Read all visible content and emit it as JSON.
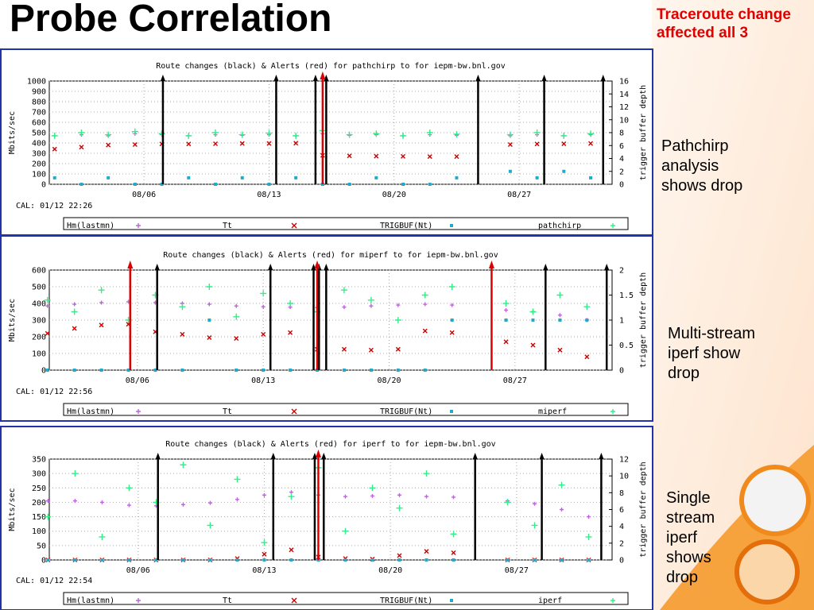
{
  "title": "Probe Correlation",
  "note": "Traceroute change affected all 3",
  "chart_data": [
    {
      "type": "scatter",
      "title": "Route changes (black) & Alerts (red) for pathchirp to  for iepm-bw.bnl.gov",
      "y_label": "Mbits/sec",
      "y2_label": "trigger buffer depth",
      "caption": "CAL: 01/12 22:26",
      "side_text": "Pathchirp analysis shows drop",
      "x": [
        1,
        2.5,
        4,
        5.5,
        7,
        8.5,
        10,
        11.5,
        13,
        14.5,
        16,
        17.5,
        19,
        20.5,
        22,
        23.5,
        25,
        26.5,
        28,
        29.5,
        31
      ],
      "xlim": [
        0.7,
        32.2
      ],
      "xticks": [
        {
          "value": 6,
          "label": "08/06"
        },
        {
          "value": 13,
          "label": "08/13"
        },
        {
          "value": 20,
          "label": "08/20"
        },
        {
          "value": 27,
          "label": "08/27"
        }
      ],
      "ylim": [
        0,
        1000
      ],
      "yticks": [
        0,
        100,
        200,
        300,
        400,
        500,
        600,
        700,
        800,
        900,
        1000
      ],
      "y2lim": [
        0,
        16
      ],
      "y2ticks": [
        0,
        2,
        4,
        6,
        8,
        10,
        12,
        14,
        16
      ],
      "grid": true,
      "route_changes": [
        7.06,
        13.4,
        15.6,
        16.2,
        24.7,
        28.4,
        31.7
      ],
      "alerts": [
        16.0
      ],
      "series": [
        {
          "name": "Hm(lastmn)",
          "color": "#bb66dd",
          "values": [
            470,
            480,
            470,
            490,
            480,
            470,
            480,
            475,
            480,
            470,
            490,
            475,
            480,
            470,
            480,
            475,
            null,
            470,
            480,
            470,
            480
          ]
        },
        {
          "name": "Tt",
          "color": "#cc0000",
          "values": [
            340,
            360,
            380,
            385,
            390,
            390,
            392,
            395,
            395,
            398,
            280,
            275,
            272,
            270,
            268,
            268,
            null,
            385,
            390,
            392,
            395
          ]
        },
        {
          "name": "TRIGBUF(Nt)",
          "color": "#22aacc",
          "axis": "y2",
          "values": [
            1,
            0,
            1,
            0,
            0,
            1,
            0,
            1,
            0,
            1,
            0,
            0,
            1,
            0,
            0,
            1,
            null,
            2,
            1,
            2,
            1
          ]
        },
        {
          "name": "pathchirp",
          "color": "#33ee88",
          "values": [
            470,
            500,
            480,
            510,
            490,
            470,
            500,
            480,
            495,
            470,
            520,
            480,
            490,
            470,
            500,
            485,
            null,
            480,
            500,
            470,
            490
          ]
        }
      ]
    },
    {
      "type": "scatter",
      "title": "Route changes (black) & Alerts (red) for miperf to  for iepm-bw.bnl.gov",
      "y_label": "Mbits/sec",
      "y2_label": "trigger buffer depth",
      "caption": "CAL: 01/12 22:56",
      "side_text": "Multi-stream iperf show drop",
      "x": [
        1,
        2.5,
        4,
        5.5,
        7,
        8.5,
        10,
        11.5,
        13,
        14.5,
        16,
        17.5,
        19,
        20.5,
        22,
        23.5,
        25,
        26.5,
        28,
        29.5,
        31
      ],
      "xlim": [
        1.1,
        32.4
      ],
      "xticks": [
        {
          "value": 6,
          "label": "08/06"
        },
        {
          "value": 13,
          "label": "08/13"
        },
        {
          "value": 20,
          "label": "08/20"
        },
        {
          "value": 27,
          "label": "08/27"
        }
      ],
      "ylim": [
        0,
        600
      ],
      "yticks": [
        0,
        100,
        200,
        300,
        400,
        500,
        600
      ],
      "y2lim": [
        0,
        2
      ],
      "y2ticks": [
        0,
        0.5,
        1,
        1.5,
        2
      ],
      "grid": true,
      "route_changes": [
        7.1,
        13.4,
        15.8,
        16.1,
        16.5,
        28.7,
        32.1
      ],
      "alerts": [
        5.6,
        16.0,
        25.7
      ],
      "series": [
        {
          "name": "Hm(lastmn)",
          "color": "#bb66dd",
          "values": [
            385,
            395,
            405,
            410,
            405,
            400,
            395,
            385,
            380,
            378,
            375,
            378,
            385,
            390,
            395,
            390,
            null,
            360,
            350,
            330,
            300
          ]
        },
        {
          "name": "Tt",
          "color": "#cc0000",
          "values": [
            220,
            250,
            270,
            275,
            230,
            215,
            195,
            190,
            215,
            225,
            125,
            125,
            120,
            125,
            235,
            225,
            null,
            170,
            150,
            120,
            80
          ]
        },
        {
          "name": "TRIGBUF(Nt)",
          "color": "#22aacc",
          "axis": "y2",
          "values": [
            0,
            0,
            0,
            0,
            0,
            0,
            1,
            0,
            0,
            0,
            0,
            0,
            0,
            0,
            0,
            1,
            null,
            1,
            1,
            1,
            1
          ]
        },
        {
          "name": "miperf",
          "color": "#33ee88",
          "values": [
            420,
            350,
            480,
            300,
            450,
            380,
            500,
            320,
            460,
            400,
            350,
            480,
            420,
            300,
            450,
            500,
            null,
            400,
            350,
            450,
            380
          ]
        }
      ]
    },
    {
      "type": "scatter",
      "title": "Route changes (black) & Alerts (red) for iperf to  for iepm-bw.bnl.gov",
      "y_label": "Mbits/sec",
      "y2_label": "trigger buffer depth",
      "caption": "CAL: 01/12 22:54",
      "side_text": "Single stream iperf shows drop",
      "x": [
        1,
        2.5,
        4,
        5.5,
        7,
        8.5,
        10,
        11.5,
        13,
        14.5,
        16,
        17.5,
        19,
        20.5,
        22,
        23.5,
        25,
        26.5,
        28,
        29.5,
        31
      ],
      "xlim": [
        1.07,
        32.3
      ],
      "xticks": [
        {
          "value": 6,
          "label": "08/06"
        },
        {
          "value": 13,
          "label": "08/13"
        },
        {
          "value": 20,
          "label": "08/20"
        },
        {
          "value": 27,
          "label": "08/27"
        }
      ],
      "ylim": [
        0,
        350
      ],
      "yticks": [
        0,
        50,
        100,
        150,
        200,
        250,
        300,
        350
      ],
      "y2lim": [
        0,
        12
      ],
      "y2ticks": [
        0,
        2,
        4,
        6,
        8,
        10,
        12
      ],
      "grid": true,
      "route_changes": [
        7.1,
        13.5,
        15.8,
        16.3,
        24.7,
        28.4,
        31.7
      ],
      "alerts": [
        16.0
      ],
      "series": [
        {
          "name": "Hm(lastmn)",
          "color": "#bb66dd",
          "values": [
            205,
            205,
            200,
            190,
            188,
            192,
            198,
            210,
            225,
            235,
            225,
            220,
            222,
            225,
            220,
            218,
            null,
            205,
            195,
            175,
            150
          ]
        },
        {
          "name": "Tt",
          "color": "#cc0000",
          "values": [
            0,
            0,
            0,
            0,
            0,
            0,
            0,
            5,
            20,
            35,
            10,
            5,
            3,
            15,
            30,
            25,
            null,
            0,
            0,
            0,
            0
          ]
        },
        {
          "name": "TRIGBUF(Nt)",
          "color": "#22aacc",
          "axis": "y2",
          "values": [
            0,
            0,
            0,
            0,
            0,
            0,
            0,
            0,
            0,
            0,
            0,
            0,
            0,
            0,
            0,
            0,
            null,
            0,
            0,
            0,
            0
          ]
        },
        {
          "name": "iperf",
          "color": "#33ee88",
          "values": [
            150,
            300,
            80,
            250,
            200,
            330,
            120,
            280,
            60,
            220,
            320,
            100,
            250,
            180,
            300,
            90,
            null,
            200,
            120,
            260,
            80
          ]
        }
      ]
    }
  ]
}
